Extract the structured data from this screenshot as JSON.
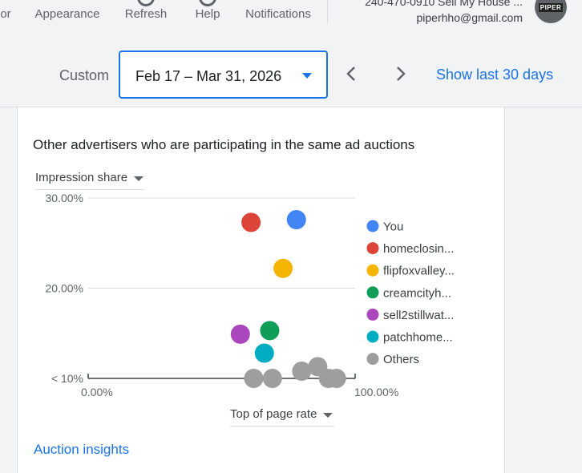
{
  "toolbar": {
    "items": [
      {
        "label": "or"
      },
      {
        "label": "Appearance"
      },
      {
        "label": "Refresh"
      },
      {
        "label": "Help"
      },
      {
        "label": "Notifications"
      }
    ],
    "account_line1": "240-470-0910 Sell My House ...",
    "account_email": "piperhho@gmail.com",
    "avatar_text": "PIPER"
  },
  "date_range": {
    "mode_label": "Custom",
    "value": "Feb 17 – Mar 31, 2026",
    "show_last_label": "Show last 30 days"
  },
  "card": {
    "title": "Other advertisers who are participating in the same ad auctions",
    "metric_label": "Impression share",
    "xaxis_label": "Top of page rate",
    "link_label": "Auction insights"
  },
  "chart_data": {
    "type": "scatter",
    "title": "Other advertisers who are participating in the same ad auctions",
    "xlabel": "Top of page rate",
    "ylabel": "Impression share",
    "xlim": [
      0,
      100
    ],
    "ylim": [
      10,
      30
    ],
    "x_ticks": [
      "0.00%",
      "100.00%"
    ],
    "y_ticks": [
      {
        "value": 30,
        "label": "30.00%"
      },
      {
        "value": 20,
        "label": "20.00%"
      },
      {
        "value": 10,
        "label": "< 10%"
      }
    ],
    "legend_position": "right",
    "series": [
      {
        "name": "You",
        "color": "#4285f4",
        "points": [
          {
            "x": 78,
            "y": 27.6
          }
        ]
      },
      {
        "name": "homeclosin...",
        "color": "#db4437",
        "points": [
          {
            "x": 61,
            "y": 27.3
          }
        ]
      },
      {
        "name": "flipfoxvalley...",
        "color": "#f4b400",
        "points": [
          {
            "x": 73,
            "y": 22.2
          }
        ]
      },
      {
        "name": "creamcityh...",
        "color": "#0f9d58",
        "points": [
          {
            "x": 68,
            "y": 15.3
          }
        ]
      },
      {
        "name": "sell2stillwat...",
        "color": "#ab47bc",
        "points": [
          {
            "x": 57,
            "y": 14.9
          }
        ]
      },
      {
        "name": "patchhome...",
        "color": "#00acc1",
        "points": [
          {
            "x": 66,
            "y": 12.8
          }
        ]
      },
      {
        "name": "Others",
        "color": "#9e9e9e",
        "points": [
          {
            "x": 62,
            "y": 10.0
          },
          {
            "x": 69,
            "y": 10.0
          },
          {
            "x": 80,
            "y": 10.8
          },
          {
            "x": 86,
            "y": 11.3
          },
          {
            "x": 90,
            "y": 10.0
          },
          {
            "x": 93,
            "y": 10.0
          }
        ]
      }
    ]
  }
}
